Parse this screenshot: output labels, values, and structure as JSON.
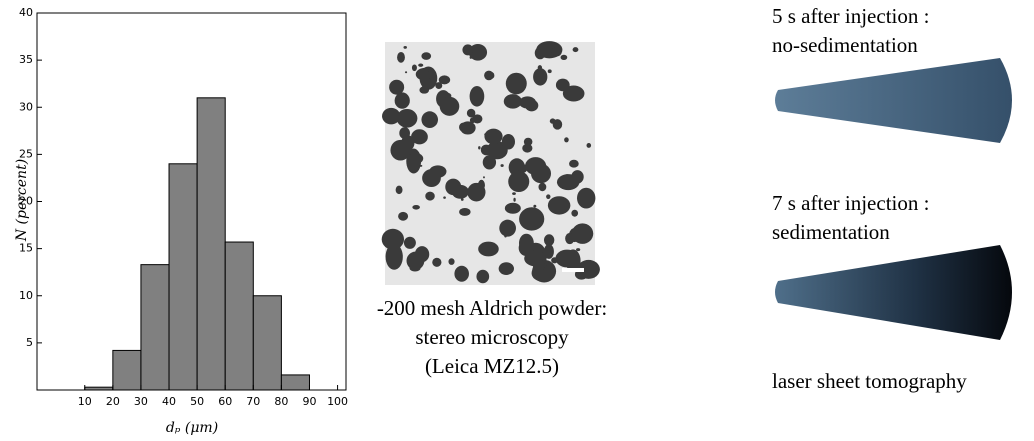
{
  "chart_data": {
    "type": "histogram",
    "xlabel": "dₚ  (μm)",
    "ylabel": "N (percent)",
    "bins": [
      10,
      20,
      30,
      40,
      50,
      60,
      70,
      80,
      90
    ],
    "values": [
      0.3,
      4.2,
      13.3,
      24,
      31,
      15.7,
      10,
      1.6
    ],
    "color": "#808080",
    "xlim": [
      -7,
      103
    ],
    "xticks": [
      10,
      20,
      30,
      40,
      50,
      60,
      70,
      80,
      90,
      100
    ],
    "ylim": [
      0,
      40
    ],
    "yticks": [
      5,
      10,
      15,
      20,
      25,
      30,
      35,
      40
    ]
  },
  "microscopy": {
    "caption": [
      "-200 mesh Aldrich powder:",
      "stereo microscopy",
      "(Leica MZ12.5)"
    ]
  },
  "tomography": {
    "top_label": [
      "5 s after injection :",
      "no-sedimentation"
    ],
    "bottom_label": [
      "7 s after injection :",
      "sedimentation"
    ],
    "caption": "laser sheet tomography"
  }
}
